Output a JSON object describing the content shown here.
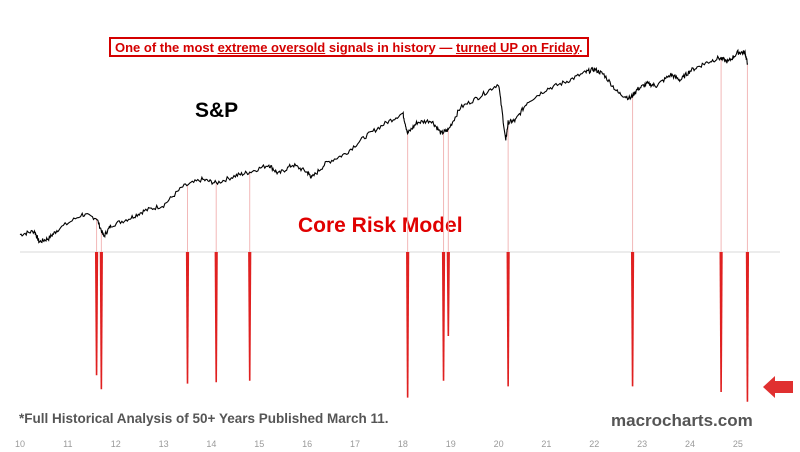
{
  "headline": {
    "part1": "One of the most ",
    "part2": "extreme oversold",
    "part3": " signals in history — ",
    "part4": "turned UP on Friday",
    "part5": "."
  },
  "labels": {
    "sp": "S&P",
    "model": "Core Risk Model",
    "footnote": "*Full Historical Analysis of 50+ Years Published March 11.",
    "brand": "macrocharts.com"
  },
  "colors": {
    "signal": "#e02020",
    "signal_line": "#f2b8b8",
    "price": "#000000",
    "axis_text": "#9a9a9a",
    "baseline": "#d9d9d9",
    "arrow": "#e03030"
  },
  "chart_data": {
    "type": "line",
    "x_ticks": [
      "10",
      "11",
      "12",
      "13",
      "14",
      "15",
      "16",
      "17",
      "18",
      "19",
      "20",
      "21",
      "22",
      "23",
      "24",
      "25"
    ],
    "x_range": [
      10,
      25.4
    ],
    "series": [
      {
        "x": [
          10.0,
          10.3,
          10.4,
          10.6,
          10.8,
          11.3,
          11.6,
          11.75,
          11.9,
          12.3,
          12.6,
          13.0,
          13.4,
          13.8,
          14.1,
          14.5,
          14.8,
          15.2,
          15.4,
          15.7,
          16.0,
          16.1,
          16.4,
          16.8,
          17.2,
          17.6,
          18.0,
          18.1,
          18.3,
          18.6,
          18.8,
          18.95,
          19.2,
          19.6,
          20.0,
          20.15,
          20.2,
          20.35,
          20.6,
          21.0,
          21.4,
          21.8,
          22.0,
          22.2,
          22.5,
          22.75,
          22.9,
          23.1,
          23.3,
          23.6,
          23.8,
          24.0,
          24.3,
          24.6,
          24.8,
          25.0,
          25.15,
          25.2
        ],
        "y": [
          0.04,
          0.06,
          0.0,
          0.02,
          0.07,
          0.15,
          0.13,
          0.03,
          0.09,
          0.13,
          0.17,
          0.2,
          0.3,
          0.34,
          0.32,
          0.36,
          0.38,
          0.42,
          0.37,
          0.42,
          0.38,
          0.35,
          0.43,
          0.48,
          0.57,
          0.64,
          0.7,
          0.59,
          0.65,
          0.66,
          0.59,
          0.61,
          0.73,
          0.79,
          0.86,
          0.55,
          0.65,
          0.66,
          0.76,
          0.83,
          0.87,
          0.92,
          0.94,
          0.91,
          0.81,
          0.78,
          0.83,
          0.86,
          0.85,
          0.91,
          0.88,
          0.93,
          0.97,
          1.0,
          0.98,
          1.03,
          1.03,
          0.97
        ]
      }
    ],
    "signals": [
      11.6,
      11.7,
      13.5,
      14.1,
      14.8,
      18.1,
      18.85,
      18.95,
      20.2,
      22.8,
      24.65,
      25.2
    ],
    "signal_depths": [
      0.88,
      0.98,
      0.94,
      0.93,
      0.92,
      1.04,
      0.92,
      0.6,
      0.96,
      0.96,
      1.0,
      1.07
    ],
    "grid": false,
    "title": "",
    "xlabel": "",
    "ylabel": ""
  }
}
